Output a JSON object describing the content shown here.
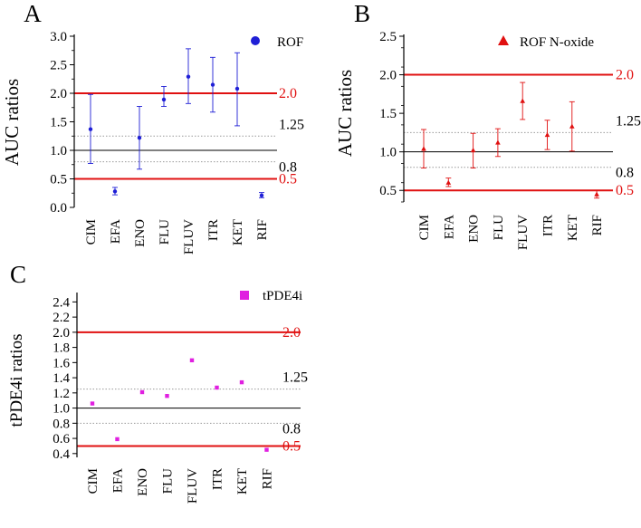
{
  "chart_data": [
    {
      "panel_label": "A",
      "type": "scatter",
      "ylabel": "AUC ratios",
      "ylim": [
        0.0,
        3.0
      ],
      "yticks": [
        "0.0",
        "0.5",
        "1.0",
        "1.5",
        "2.0",
        "2.5",
        "3.0"
      ],
      "yticks_values": [
        0.0,
        0.5,
        1.0,
        1.5,
        2.0,
        2.5,
        3.0
      ],
      "categories": [
        "CIM",
        "EFA",
        "ENO",
        "FLU",
        "FLUV",
        "ITR",
        "KET",
        "RIF"
      ],
      "series": [
        {
          "name": "ROF",
          "color": "#1f1fd6",
          "marker": "circle",
          "values": [
            1.37,
            0.28,
            1.22,
            1.89,
            2.29,
            2.15,
            2.08,
            0.21
          ],
          "err_low": [
            0.77,
            0.22,
            0.67,
            1.77,
            1.82,
            1.67,
            1.43,
            0.17
          ],
          "err_high": [
            1.98,
            0.35,
            1.77,
            2.12,
            2.78,
            2.63,
            2.71,
            0.26
          ]
        }
      ],
      "reference_lines": [
        {
          "value": 2.0,
          "label": "2.0",
          "color": "#e01010",
          "style": "solid-thick"
        },
        {
          "value": 1.25,
          "label": "1.25",
          "color": "#999999",
          "style": "dotted"
        },
        {
          "value": 1.0,
          "label": "",
          "color": "#000000",
          "style": "solid"
        },
        {
          "value": 0.8,
          "label": "0.8",
          "color": "#999999",
          "style": "dotted"
        },
        {
          "value": 0.5,
          "label": "0.5",
          "color": "#e01010",
          "style": "solid-thick"
        }
      ]
    },
    {
      "panel_label": "B",
      "type": "scatter",
      "ylabel": "AUC ratios",
      "ylim": [
        0.35,
        2.5
      ],
      "yticks": [
        "0.5",
        "1.0",
        "1.5",
        "2.0",
        "2.5"
      ],
      "yticks_values": [
        0.5,
        1.0,
        1.5,
        2.0,
        2.5
      ],
      "categories": [
        "CIM",
        "EFA",
        "ENO",
        "FLU",
        "FLUV",
        "ITR",
        "KET",
        "RIF"
      ],
      "series": [
        {
          "name": "ROF N-oxide",
          "color": "#e01010",
          "marker": "triangle",
          "values": [
            1.04,
            0.6,
            1.02,
            1.12,
            1.66,
            1.22,
            1.33,
            0.45
          ],
          "err_low": [
            0.79,
            0.55,
            0.79,
            0.94,
            1.42,
            1.03,
            1.01,
            0.4
          ],
          "err_high": [
            1.29,
            0.66,
            1.24,
            1.3,
            1.9,
            1.41,
            1.65,
            0.5
          ]
        }
      ],
      "reference_lines": [
        {
          "value": 2.0,
          "label": "2.0",
          "color": "#e01010",
          "style": "solid-thick"
        },
        {
          "value": 1.25,
          "label": "1.25",
          "color": "#999999",
          "style": "dotted"
        },
        {
          "value": 1.0,
          "label": "",
          "color": "#000000",
          "style": "solid"
        },
        {
          "value": 0.8,
          "label": "0.8",
          "color": "#999999",
          "style": "dotted"
        },
        {
          "value": 0.5,
          "label": "0.5",
          "color": "#e01010",
          "style": "solid-thick"
        }
      ]
    },
    {
      "panel_label": "C",
      "type": "scatter",
      "ylabel": "tPDE4i ratios",
      "ylim": [
        0.35,
        2.5
      ],
      "yticks": [
        "0.4",
        "0.6",
        "0.8",
        "1.0",
        "1.2",
        "1.4",
        "1.6",
        "1.8",
        "2.0",
        "2.2",
        "2.4"
      ],
      "yticks_values": [
        0.4,
        0.6,
        0.8,
        1.0,
        1.2,
        1.4,
        1.6,
        1.8,
        2.0,
        2.2,
        2.4
      ],
      "categories": [
        "CIM",
        "EFA",
        "ENO",
        "FLU",
        "FLUV",
        "ITR",
        "KET",
        "RIF"
      ],
      "series": [
        {
          "name": "tPDE4i",
          "color": "#e020e0",
          "marker": "square",
          "values": [
            1.06,
            0.59,
            1.21,
            1.16,
            1.63,
            1.27,
            1.34,
            0.45
          ]
        }
      ],
      "reference_lines": [
        {
          "value": 2.0,
          "label": "2.0",
          "color": "#e01010",
          "style": "solid-thick"
        },
        {
          "value": 1.25,
          "label": "1.25",
          "color": "#999999",
          "style": "dotted"
        },
        {
          "value": 1.0,
          "label": "",
          "color": "#000000",
          "style": "solid"
        },
        {
          "value": 0.8,
          "label": "0.8",
          "color": "#999999",
          "style": "dotted"
        },
        {
          "value": 0.5,
          "label": "0.5",
          "color": "#e01010",
          "style": "solid-thick"
        }
      ]
    }
  ]
}
